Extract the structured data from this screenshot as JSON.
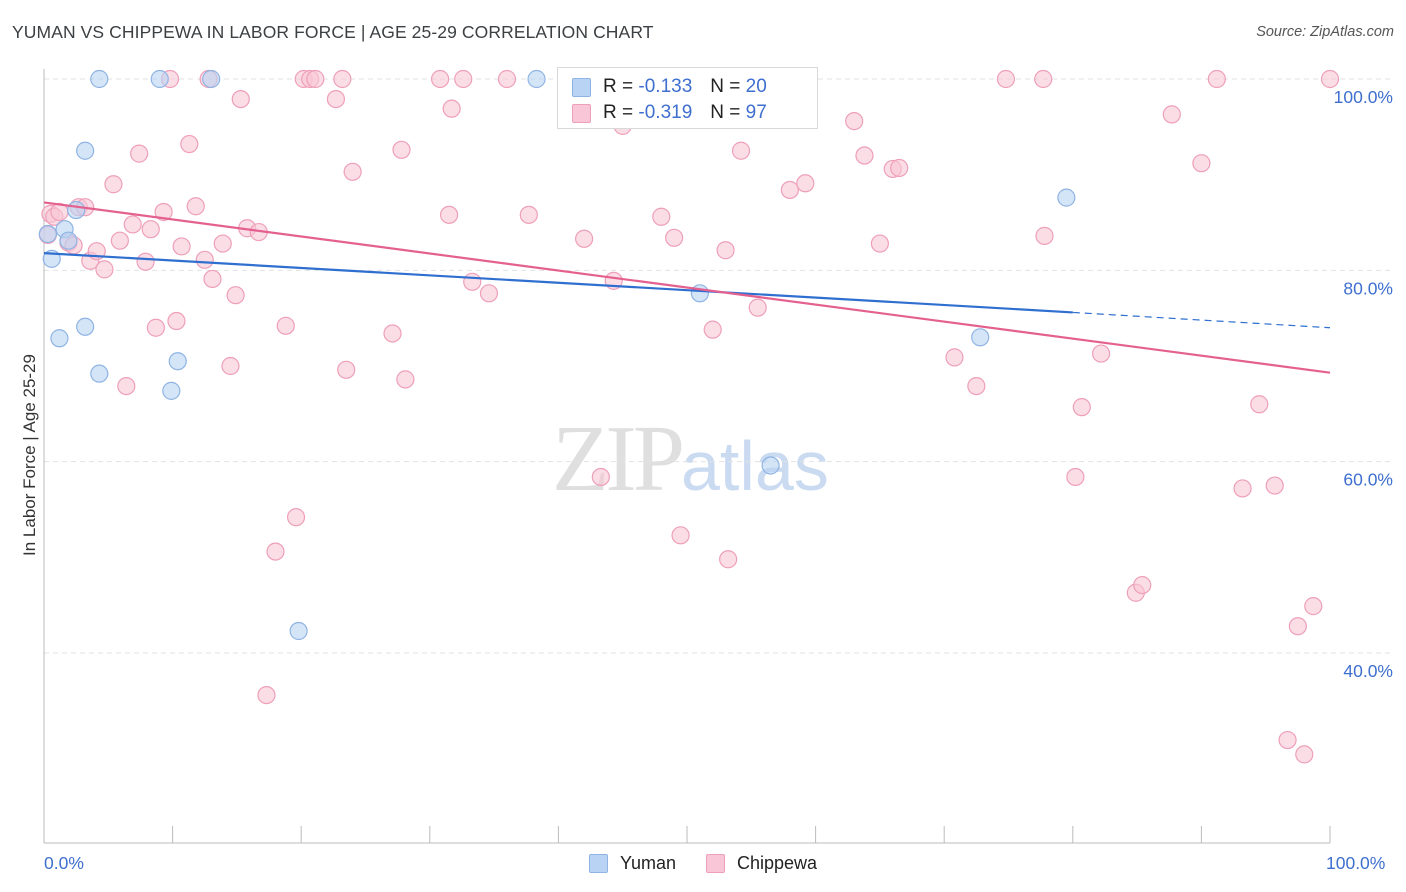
{
  "title": "YUMAN VS CHIPPEWA IN LABOR FORCE | AGE 25-29 CORRELATION CHART",
  "source": "Source: ZipAtlas.com",
  "watermark": {
    "zip": "ZIP",
    "atlas": "atlas"
  },
  "stats": [
    {
      "r_label": "R =",
      "r_value": "-0.133",
      "n_label": "N =",
      "n_value": "20"
    },
    {
      "r_label": "R =",
      "r_value": "-0.319",
      "n_label": "N =",
      "n_value": "97"
    }
  ],
  "legend": [
    {
      "label": "Yuman"
    },
    {
      "label": "Chippewa"
    }
  ],
  "x_tick_labels": {
    "left": "0.0%",
    "right": "100.0%"
  },
  "colors": {
    "yuman_fill": "#b8d3f4",
    "yuman_stroke": "#8fb4e3",
    "yuman_line": "#2f6fd0",
    "chippewa_fill": "#f8c6d6",
    "chippewa_stroke": "#ee9fb9",
    "chippewa_line": "#e4608f",
    "axis_text": "#3e6fcf",
    "grid": "#e2e2e2"
  },
  "chart_data": {
    "type": "scatter",
    "xlabel": "",
    "ylabel": "In Labor Force | Age 25-29",
    "xlim": [
      0,
      100
    ],
    "ylim": [
      22,
      102
    ],
    "y_ticks": [
      {
        "value": 100,
        "label": "100.0%"
      },
      {
        "value": 80,
        "label": "80.0%"
      },
      {
        "value": 60,
        "label": "60.0%"
      },
      {
        "value": 40,
        "label": "40.0%"
      }
    ],
    "grid": true,
    "legend_position": "bottom-center",
    "series": [
      {
        "name": "Yuman",
        "points": [
          [
            0.3,
            83.8
          ],
          [
            0.6,
            81.2
          ],
          [
            1.2,
            72.9
          ],
          [
            1.6,
            84.3
          ],
          [
            1.9,
            83.1
          ],
          [
            2.5,
            86.3
          ],
          [
            3.2,
            92.5
          ],
          [
            3.2,
            74.1
          ],
          [
            4.3,
            69.2
          ],
          [
            4.3,
            100.0
          ],
          [
            9.0,
            100.0
          ],
          [
            9.9,
            67.4
          ],
          [
            10.4,
            70.5
          ],
          [
            13.0,
            100.0
          ],
          [
            19.8,
            42.3
          ],
          [
            38.3,
            100.0
          ],
          [
            51.0,
            77.6
          ],
          [
            56.5,
            59.6
          ],
          [
            72.8,
            73.0
          ],
          [
            79.5,
            87.6
          ]
        ],
        "trend": {
          "x": [
            0,
            80
          ],
          "y": [
            81.8,
            75.6
          ],
          "dashed_to": [
            100,
            74.0
          ]
        }
      },
      {
        "name": "Chippewa",
        "points": [
          [
            0.3,
            83.7
          ],
          [
            0.5,
            85.9
          ],
          [
            0.8,
            85.6
          ],
          [
            1.2,
            86.1
          ],
          [
            1.9,
            82.9
          ],
          [
            2.3,
            82.6
          ],
          [
            2.7,
            86.6
          ],
          [
            3.2,
            86.6
          ],
          [
            3.6,
            81.0
          ],
          [
            4.1,
            82.0
          ],
          [
            4.7,
            80.1
          ],
          [
            5.4,
            89.0
          ],
          [
            5.9,
            83.1
          ],
          [
            6.4,
            67.9
          ],
          [
            6.9,
            84.8
          ],
          [
            7.4,
            92.2
          ],
          [
            7.9,
            80.9
          ],
          [
            8.3,
            84.3
          ],
          [
            8.7,
            74.0
          ],
          [
            9.3,
            86.1
          ],
          [
            9.8,
            100.0
          ],
          [
            10.3,
            74.7
          ],
          [
            10.7,
            82.5
          ],
          [
            11.3,
            93.2
          ],
          [
            11.8,
            86.7
          ],
          [
            12.5,
            81.1
          ],
          [
            12.8,
            100.0
          ],
          [
            13.1,
            79.1
          ],
          [
            13.9,
            82.8
          ],
          [
            14.5,
            70.0
          ],
          [
            14.9,
            77.4
          ],
          [
            15.3,
            97.9
          ],
          [
            15.8,
            84.4
          ],
          [
            16.7,
            84.0
          ],
          [
            17.3,
            35.6
          ],
          [
            18.0,
            50.6
          ],
          [
            18.8,
            74.2
          ],
          [
            19.6,
            54.2
          ],
          [
            20.2,
            100.0
          ],
          [
            20.7,
            100.0
          ],
          [
            21.1,
            100.0
          ],
          [
            22.7,
            97.9
          ],
          [
            23.2,
            100.0
          ],
          [
            23.5,
            69.6
          ],
          [
            24.0,
            90.3
          ],
          [
            27.1,
            73.4
          ],
          [
            27.8,
            92.6
          ],
          [
            28.1,
            68.6
          ],
          [
            30.8,
            100.0
          ],
          [
            31.5,
            85.8
          ],
          [
            31.7,
            96.9
          ],
          [
            32.6,
            100.0
          ],
          [
            33.3,
            78.8
          ],
          [
            34.6,
            77.6
          ],
          [
            36.0,
            100.0
          ],
          [
            37.7,
            85.8
          ],
          [
            42.0,
            83.3
          ],
          [
            43.3,
            58.4
          ],
          [
            44.3,
            78.9
          ],
          [
            45.0,
            95.1
          ],
          [
            48.0,
            85.6
          ],
          [
            49.0,
            83.4
          ],
          [
            49.5,
            52.3
          ],
          [
            50.5,
            100.0
          ],
          [
            52.0,
            73.8
          ],
          [
            53.0,
            82.1
          ],
          [
            53.2,
            49.8
          ],
          [
            54.2,
            92.5
          ],
          [
            55.5,
            76.1
          ],
          [
            58.0,
            88.4
          ],
          [
            59.2,
            89.1
          ],
          [
            63.0,
            95.6
          ],
          [
            63.8,
            92.0
          ],
          [
            65.0,
            82.8
          ],
          [
            66.0,
            90.6
          ],
          [
            66.5,
            90.7
          ],
          [
            70.8,
            70.9
          ],
          [
            72.5,
            67.9
          ],
          [
            74.8,
            100.0
          ],
          [
            77.7,
            100.0
          ],
          [
            77.8,
            83.6
          ],
          [
            80.2,
            58.4
          ],
          [
            80.7,
            65.7
          ],
          [
            82.2,
            71.3
          ],
          [
            84.9,
            46.3
          ],
          [
            85.4,
            47.1
          ],
          [
            87.7,
            96.3
          ],
          [
            90.0,
            91.2
          ],
          [
            91.2,
            100.0
          ],
          [
            93.2,
            57.2
          ],
          [
            94.5,
            66.0
          ],
          [
            95.7,
            57.5
          ],
          [
            96.7,
            30.9
          ],
          [
            97.5,
            42.8
          ],
          [
            98.0,
            29.4
          ],
          [
            98.7,
            44.9
          ],
          [
            100.0,
            100.0
          ]
        ],
        "trend": {
          "x": [
            0,
            100
          ],
          "y": [
            87.1,
            69.3
          ]
        }
      }
    ]
  }
}
